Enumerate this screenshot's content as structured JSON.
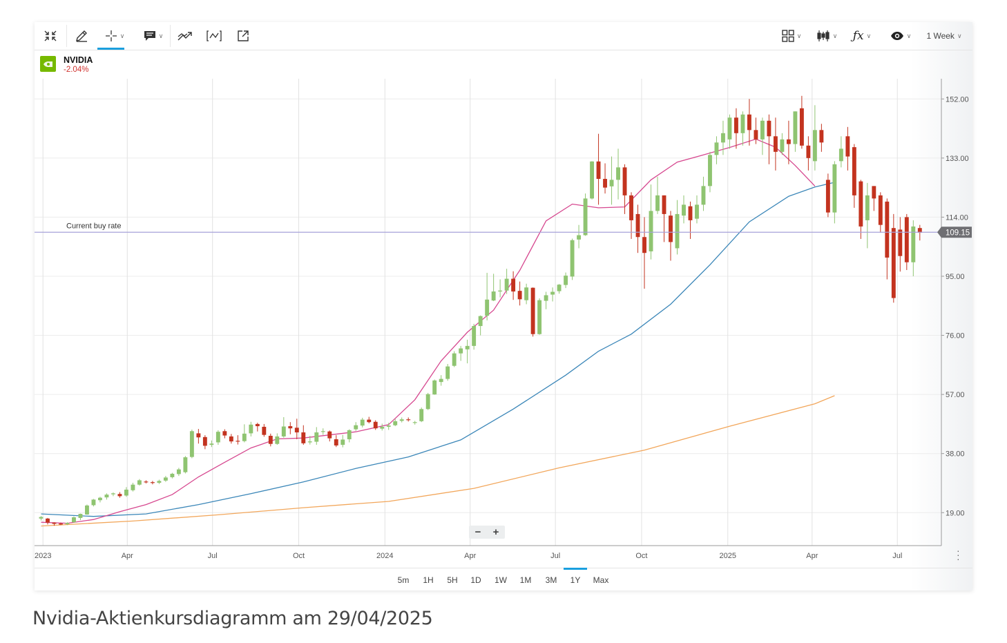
{
  "toolbar": {
    "tools": [
      {
        "name": "collapse-tool",
        "icon": "collapse-icon"
      },
      {
        "name": "draw-tool",
        "icon": "pencil-icon"
      },
      {
        "name": "crosshair-tool",
        "icon": "crosshair-icon"
      },
      {
        "name": "annotation-tool",
        "icon": "comment-icon"
      },
      {
        "name": "trend-tool",
        "icon": "trend-icon"
      },
      {
        "name": "range-tool",
        "icon": "range-icon"
      },
      {
        "name": "popout-tool",
        "icon": "external-link-icon"
      }
    ],
    "right_tools": [
      {
        "name": "layout-tool",
        "icon": "grid-icon"
      },
      {
        "name": "chart-type-tool",
        "icon": "candlestick-icon"
      },
      {
        "name": "indicators-tool",
        "icon": "fx-icon"
      },
      {
        "name": "visibility-tool",
        "icon": "eye-icon"
      }
    ],
    "period_select": "1 Week"
  },
  "symbol": {
    "name": "NVIDIA",
    "change": "-2.04%",
    "logo_color": "#76b900"
  },
  "periods": [
    "5m",
    "1H",
    "5H",
    "1D",
    "1W",
    "1M",
    "3M",
    "1Y",
    "Max"
  ],
  "active_period": "1Y",
  "caption": "Nvidia-Aktienkursdiagramm am 29/04/2025",
  "chart_data": {
    "type": "candlestick",
    "interval": "1 Week",
    "y_ticks": [
      "152.00",
      "133.00",
      "114.00",
      "95.00",
      "76.00",
      "57.00",
      "38.00",
      "19.00"
    ],
    "y_tick_values": [
      152,
      133,
      114,
      95,
      76,
      57,
      38,
      19
    ],
    "ylim": [
      8.4,
      158.5
    ],
    "x_ticks": [
      "2023",
      "Apr",
      "Jul",
      "Oct",
      "2024",
      "Apr",
      "Jul",
      "Oct",
      "2025",
      "Apr",
      "Jul"
    ],
    "x_tick_dates": [
      "2023-01-01",
      "2023-04-01",
      "2023-07-01",
      "2023-10-01",
      "2024-01-01",
      "2024-04-01",
      "2024-07-01",
      "2024-10-01",
      "2025-01-01",
      "2025-04-01",
      "2025-07-01"
    ],
    "xlim": [
      "2022-12-23",
      "2025-08-17"
    ],
    "grid": true,
    "current_price": {
      "label": "Current buy rate",
      "value": 109.15,
      "value_text": "109.15"
    },
    "colors": {
      "up": "#8fc471",
      "down": "#c3331f",
      "ma_short": "#d6478f",
      "ma_mid": "#3a86b8",
      "ma_long": "#f2a65a",
      "price_line": "#a6a1d9"
    },
    "first_candle_date": "2022-12-30",
    "candle_step_days": 7,
    "candles": [
      [
        17.1,
        17.6,
        16.5,
        17.9
      ],
      [
        17.1,
        15.8,
        15.2,
        17.3
      ],
      [
        15.8,
        15.4,
        14.8,
        15.9
      ],
      [
        15.5,
        15.2,
        15.0,
        15.8
      ],
      [
        15.3,
        15.7,
        15.0,
        15.9
      ],
      [
        15.9,
        17.5,
        15.8,
        17.8
      ],
      [
        17.3,
        18.6,
        16.6,
        18.7
      ],
      [
        18.4,
        21.3,
        18.3,
        21.6
      ],
      [
        21.4,
        23.2,
        21.0,
        23.4
      ],
      [
        23.0,
        23.8,
        22.3,
        24.1
      ],
      [
        23.9,
        24.8,
        23.2,
        25.2
      ],
      [
        24.9,
        25.2,
        24.3,
        25.5
      ],
      [
        25.0,
        24.3,
        23.8,
        25.6
      ],
      [
        24.5,
        26.4,
        24.1,
        27.2
      ],
      [
        26.2,
        28.0,
        25.8,
        28.6
      ],
      [
        28.0,
        29.4,
        27.7,
        29.8
      ],
      [
        29.0,
        28.9,
        28.4,
        29.4
      ],
      [
        28.8,
        28.7,
        28.1,
        29.2
      ],
      [
        28.6,
        29.2,
        28.2,
        29.6
      ],
      [
        29.3,
        30.3,
        28.9,
        30.8
      ],
      [
        30.4,
        31.5,
        30.0,
        31.8
      ],
      [
        31.4,
        32.9,
        30.8,
        33.4
      ],
      [
        32.0,
        36.8,
        31.6,
        37.2
      ],
      [
        36.9,
        45.2,
        36.5,
        45.7
      ],
      [
        44.5,
        43.2,
        41.2,
        45.9
      ],
      [
        43.3,
        40.5,
        39.4,
        43.9
      ],
      [
        40.8,
        41.2,
        40.1,
        42.2
      ],
      [
        41.6,
        45.0,
        40.8,
        45.5
      ],
      [
        45.2,
        43.8,
        42.9,
        45.8
      ],
      [
        43.5,
        41.9,
        41.2,
        44.3
      ],
      [
        42.1,
        42.0,
        40.9,
        43.9
      ],
      [
        42.0,
        44.4,
        41.6,
        47.4
      ],
      [
        44.5,
        47.3,
        43.5,
        48.2
      ],
      [
        47.5,
        46.8,
        45.1,
        47.9
      ],
      [
        46.6,
        44.0,
        43.4,
        47.5
      ],
      [
        43.7,
        41.1,
        40.3,
        44.4
      ],
      [
        41.1,
        43.5,
        40.8,
        44.5
      ],
      [
        43.5,
        46.7,
        43.1,
        49.7
      ],
      [
        46.8,
        46.1,
        44.2,
        48.1
      ],
      [
        46.3,
        44.8,
        42.6,
        49.2
      ],
      [
        44.8,
        41.3,
        40.8,
        47.1
      ],
      [
        41.6,
        41.9,
        40.9,
        43.7
      ],
      [
        41.8,
        44.8,
        40.8,
        46.5
      ],
      [
        45.2,
        45.2,
        44.0,
        46.1
      ],
      [
        45.1,
        42.9,
        41.9,
        45.4
      ],
      [
        42.6,
        40.6,
        40.1,
        43.9
      ],
      [
        40.8,
        42.5,
        40.0,
        44.0
      ],
      [
        42.6,
        45.5,
        41.6,
        45.8
      ],
      [
        45.8,
        47.1,
        45.3,
        48.1
      ],
      [
        47.0,
        48.9,
        46.4,
        49.5
      ],
      [
        48.9,
        48.1,
        47.7,
        49.8
      ],
      [
        48.2,
        46.1,
        45.6,
        48.7
      ],
      [
        46.0,
        46.6,
        45.4,
        47.6
      ],
      [
        46.6,
        47.0,
        45.6,
        47.9
      ],
      [
        47.1,
        48.4,
        46.8,
        49.1
      ],
      [
        48.5,
        49.0,
        48.0,
        49.6
      ],
      [
        49.0,
        48.9,
        48.3,
        49.6
      ],
      [
        48.1,
        48.1,
        47.3,
        48.5
      ],
      [
        48.4,
        52.3,
        48.1,
        52.8
      ],
      [
        52.3,
        57.1,
        52.0,
        57.5
      ],
      [
        57.0,
        61.5,
        56.9,
        61.8
      ],
      [
        61.0,
        62.0,
        59.8,
        63.2
      ],
      [
        62.0,
        66.0,
        61.4,
        66.8
      ],
      [
        66.2,
        70.2,
        65.8,
        70.9
      ],
      [
        70.2,
        71.8,
        67.8,
        72.6
      ],
      [
        71.5,
        72.6,
        67.0,
        74.6
      ],
      [
        72.6,
        79.0,
        71.4,
        79.7
      ],
      [
        79.0,
        82.2,
        76.0,
        82.4
      ],
      [
        82.3,
        87.5,
        80.8,
        96.1
      ],
      [
        87.2,
        90.1,
        87.0,
        95.8
      ],
      [
        90.1,
        90.4,
        88.2,
        94.0
      ],
      [
        90.4,
        94.2,
        89.3,
        97.4
      ],
      [
        94.2,
        90.1,
        87.4,
        96.6
      ],
      [
        90.3,
        87.6,
        85.6,
        93.3
      ],
      [
        87.3,
        91.4,
        86.0,
        92.6
      ],
      [
        91.3,
        76.4,
        75.6,
        91.4
      ],
      [
        76.4,
        87.3,
        76.2,
        87.9
      ],
      [
        87.1,
        88.9,
        84.4,
        90.0
      ],
      [
        89.1,
        90.0,
        86.9,
        91.4
      ],
      [
        90.2,
        92.3,
        89.4,
        92.5
      ],
      [
        92.2,
        95.2,
        91.2,
        96.2
      ],
      [
        94.9,
        106.6,
        93.8,
        107.1
      ],
      [
        106.8,
        108.2,
        104.0,
        111.5
      ],
      [
        108.2,
        120.0,
        108.0,
        121.6
      ],
      [
        120.0,
        131.9,
        119.7,
        132.0
      ],
      [
        131.9,
        126.3,
        118.0,
        140.8
      ],
      [
        126.3,
        123.5,
        121.6,
        131.3
      ],
      [
        123.9,
        126.0,
        118.0,
        133.5
      ],
      [
        126.0,
        130.0,
        119.7,
        136.0
      ],
      [
        130.0,
        121.0,
        115.0,
        131.0
      ],
      [
        121.0,
        113.0,
        107.0,
        122.0
      ],
      [
        115.0,
        107.6,
        102.5,
        118.0
      ],
      [
        107.6,
        102.5,
        91.0,
        114.0
      ],
      [
        103.0,
        116.0,
        100.4,
        124.5
      ],
      [
        116.0,
        121.0,
        115.0,
        127.0
      ],
      [
        121.0,
        115.0,
        106.0,
        121.0
      ],
      [
        114.5,
        106.0,
        100.0,
        116.0
      ],
      [
        104.0,
        115.0,
        102.0,
        119.5
      ],
      [
        114.5,
        118.0,
        112.0,
        121.0
      ],
      [
        117.5,
        113.0,
        107.0,
        119.0
      ],
      [
        113.5,
        118.0,
        112.0,
        121.0
      ],
      [
        118.0,
        124.0,
        116.0,
        127.0
      ],
      [
        124.0,
        134.0,
        122.0,
        135.0
      ],
      [
        134.0,
        138.0,
        131.0,
        140.0
      ],
      [
        138.0,
        141.0,
        134.0,
        145.0
      ],
      [
        139.0,
        146.0,
        136.0,
        147.0
      ],
      [
        146.0,
        141.0,
        136.0,
        149.0
      ],
      [
        141.0,
        147.0,
        137.0,
        148.0
      ],
      [
        147.0,
        142.0,
        137.0,
        152.0
      ],
      [
        142.0,
        139.0,
        137.5,
        146.0
      ],
      [
        139.0,
        145.0,
        134.0,
        146.0
      ],
      [
        145.0,
        140.0,
        131.0,
        147.0
      ],
      [
        140.0,
        135.0,
        129.0,
        146.0
      ],
      [
        135.0,
        139.0,
        134.0,
        141.0
      ],
      [
        139.0,
        137.5,
        131.0,
        145.0
      ],
      [
        137.5,
        148.0,
        135.0,
        148.0
      ],
      [
        149.0,
        137.0,
        136.0,
        153.0
      ],
      [
        137.0,
        133.0,
        129.0,
        140.0
      ],
      [
        132.0,
        142.0,
        129.0,
        150.0
      ],
      [
        142.0,
        138.0,
        135.0,
        144.0
      ],
      [
        126.0,
        115.5,
        114.0,
        128.0
      ],
      [
        115.5,
        131.0,
        112.0,
        132.0
      ],
      [
        132.0,
        136.0,
        130.0,
        140.0
      ],
      [
        140.0,
        133.5,
        129.0,
        143.0
      ],
      [
        136.5,
        121.0,
        117.0,
        137.5
      ],
      [
        125.5,
        111.0,
        107.0,
        126.0
      ],
      [
        113.0,
        121.0,
        104.0,
        125.0
      ],
      [
        124.0,
        120.0,
        116.0,
        124.0
      ],
      [
        121.0,
        111.5,
        109.0,
        122.0
      ],
      [
        119.0,
        101.0,
        94.0,
        120.0
      ],
      [
        110.5,
        88.0,
        86.5,
        115.0
      ],
      [
        110.0,
        101.5,
        96.5,
        114.0
      ],
      [
        114.0,
        99.5,
        97.0,
        115.0
      ],
      [
        99.5,
        111.0,
        95.0,
        113.0
      ],
      [
        110.5,
        109.0,
        106.5,
        111.5
      ]
    ],
    "ma_short": {
      "label": "",
      "points": [
        [
          "2022-12-30",
          15.9
        ],
        [
          "2023-01-27",
          15.6
        ],
        [
          "2023-02-24",
          16.8
        ],
        [
          "2023-03-24",
          19.3
        ],
        [
          "2023-04-21",
          21.6
        ],
        [
          "2023-05-19",
          24.8
        ],
        [
          "2023-06-16",
          30.5
        ],
        [
          "2023-07-14",
          35.2
        ],
        [
          "2023-08-11",
          39.8
        ],
        [
          "2023-09-08",
          42.7
        ],
        [
          "2023-10-06",
          43.0
        ],
        [
          "2023-11-03",
          44.0
        ],
        [
          "2023-12-01",
          45.0
        ],
        [
          "2024-01-05",
          47.3
        ],
        [
          "2024-02-02",
          55.3
        ],
        [
          "2024-03-01",
          67.8
        ],
        [
          "2024-03-29",
          77.0
        ],
        [
          "2024-04-26",
          84.1
        ],
        [
          "2024-05-24",
          96.9
        ],
        [
          "2024-06-21",
          112.8
        ],
        [
          "2024-07-19",
          118.2
        ],
        [
          "2024-08-16",
          117.0
        ],
        [
          "2024-09-13",
          117.3
        ],
        [
          "2024-10-11",
          126.0
        ],
        [
          "2024-11-08",
          131.7
        ],
        [
          "2024-12-06",
          134.0
        ],
        [
          "2025-01-03",
          136.4
        ],
        [
          "2025-01-31",
          139.1
        ],
        [
          "2025-02-21",
          136.5
        ],
        [
          "2025-03-14",
          130.6
        ],
        [
          "2025-04-04",
          124.0
        ]
      ]
    },
    "ma_mid": {
      "label": "",
      "points": [
        [
          "2022-12-30",
          18.6
        ],
        [
          "2023-02-24",
          17.8
        ],
        [
          "2023-04-21",
          18.6
        ],
        [
          "2023-06-16",
          21.6
        ],
        [
          "2023-08-11",
          25.1
        ],
        [
          "2023-10-06",
          28.9
        ],
        [
          "2023-12-01",
          33.2
        ],
        [
          "2024-01-26",
          36.9
        ],
        [
          "2024-03-22",
          42.4
        ],
        [
          "2024-05-17",
          52.3
        ],
        [
          "2024-07-12",
          63.2
        ],
        [
          "2024-08-16",
          70.9
        ],
        [
          "2024-09-20",
          76.4
        ],
        [
          "2024-11-01",
          86.0
        ],
        [
          "2024-12-13",
          98.7
        ],
        [
          "2025-01-24",
          112.5
        ],
        [
          "2025-03-07",
          120.7
        ],
        [
          "2025-04-04",
          123.7
        ],
        [
          "2025-04-25",
          125.2
        ]
      ]
    },
    "ma_long": {
      "label": "",
      "points": [
        [
          "2022-12-30",
          14.7
        ],
        [
          "2023-04-07",
          16.3
        ],
        [
          "2023-07-07",
          18.3
        ],
        [
          "2023-10-06",
          20.6
        ],
        [
          "2024-01-05",
          22.6
        ],
        [
          "2024-04-05",
          26.8
        ],
        [
          "2024-07-05",
          33.4
        ],
        [
          "2024-10-04",
          39.1
        ],
        [
          "2025-01-03",
          46.8
        ],
        [
          "2025-04-04",
          54.0
        ],
        [
          "2025-04-25",
          56.6
        ]
      ]
    }
  }
}
